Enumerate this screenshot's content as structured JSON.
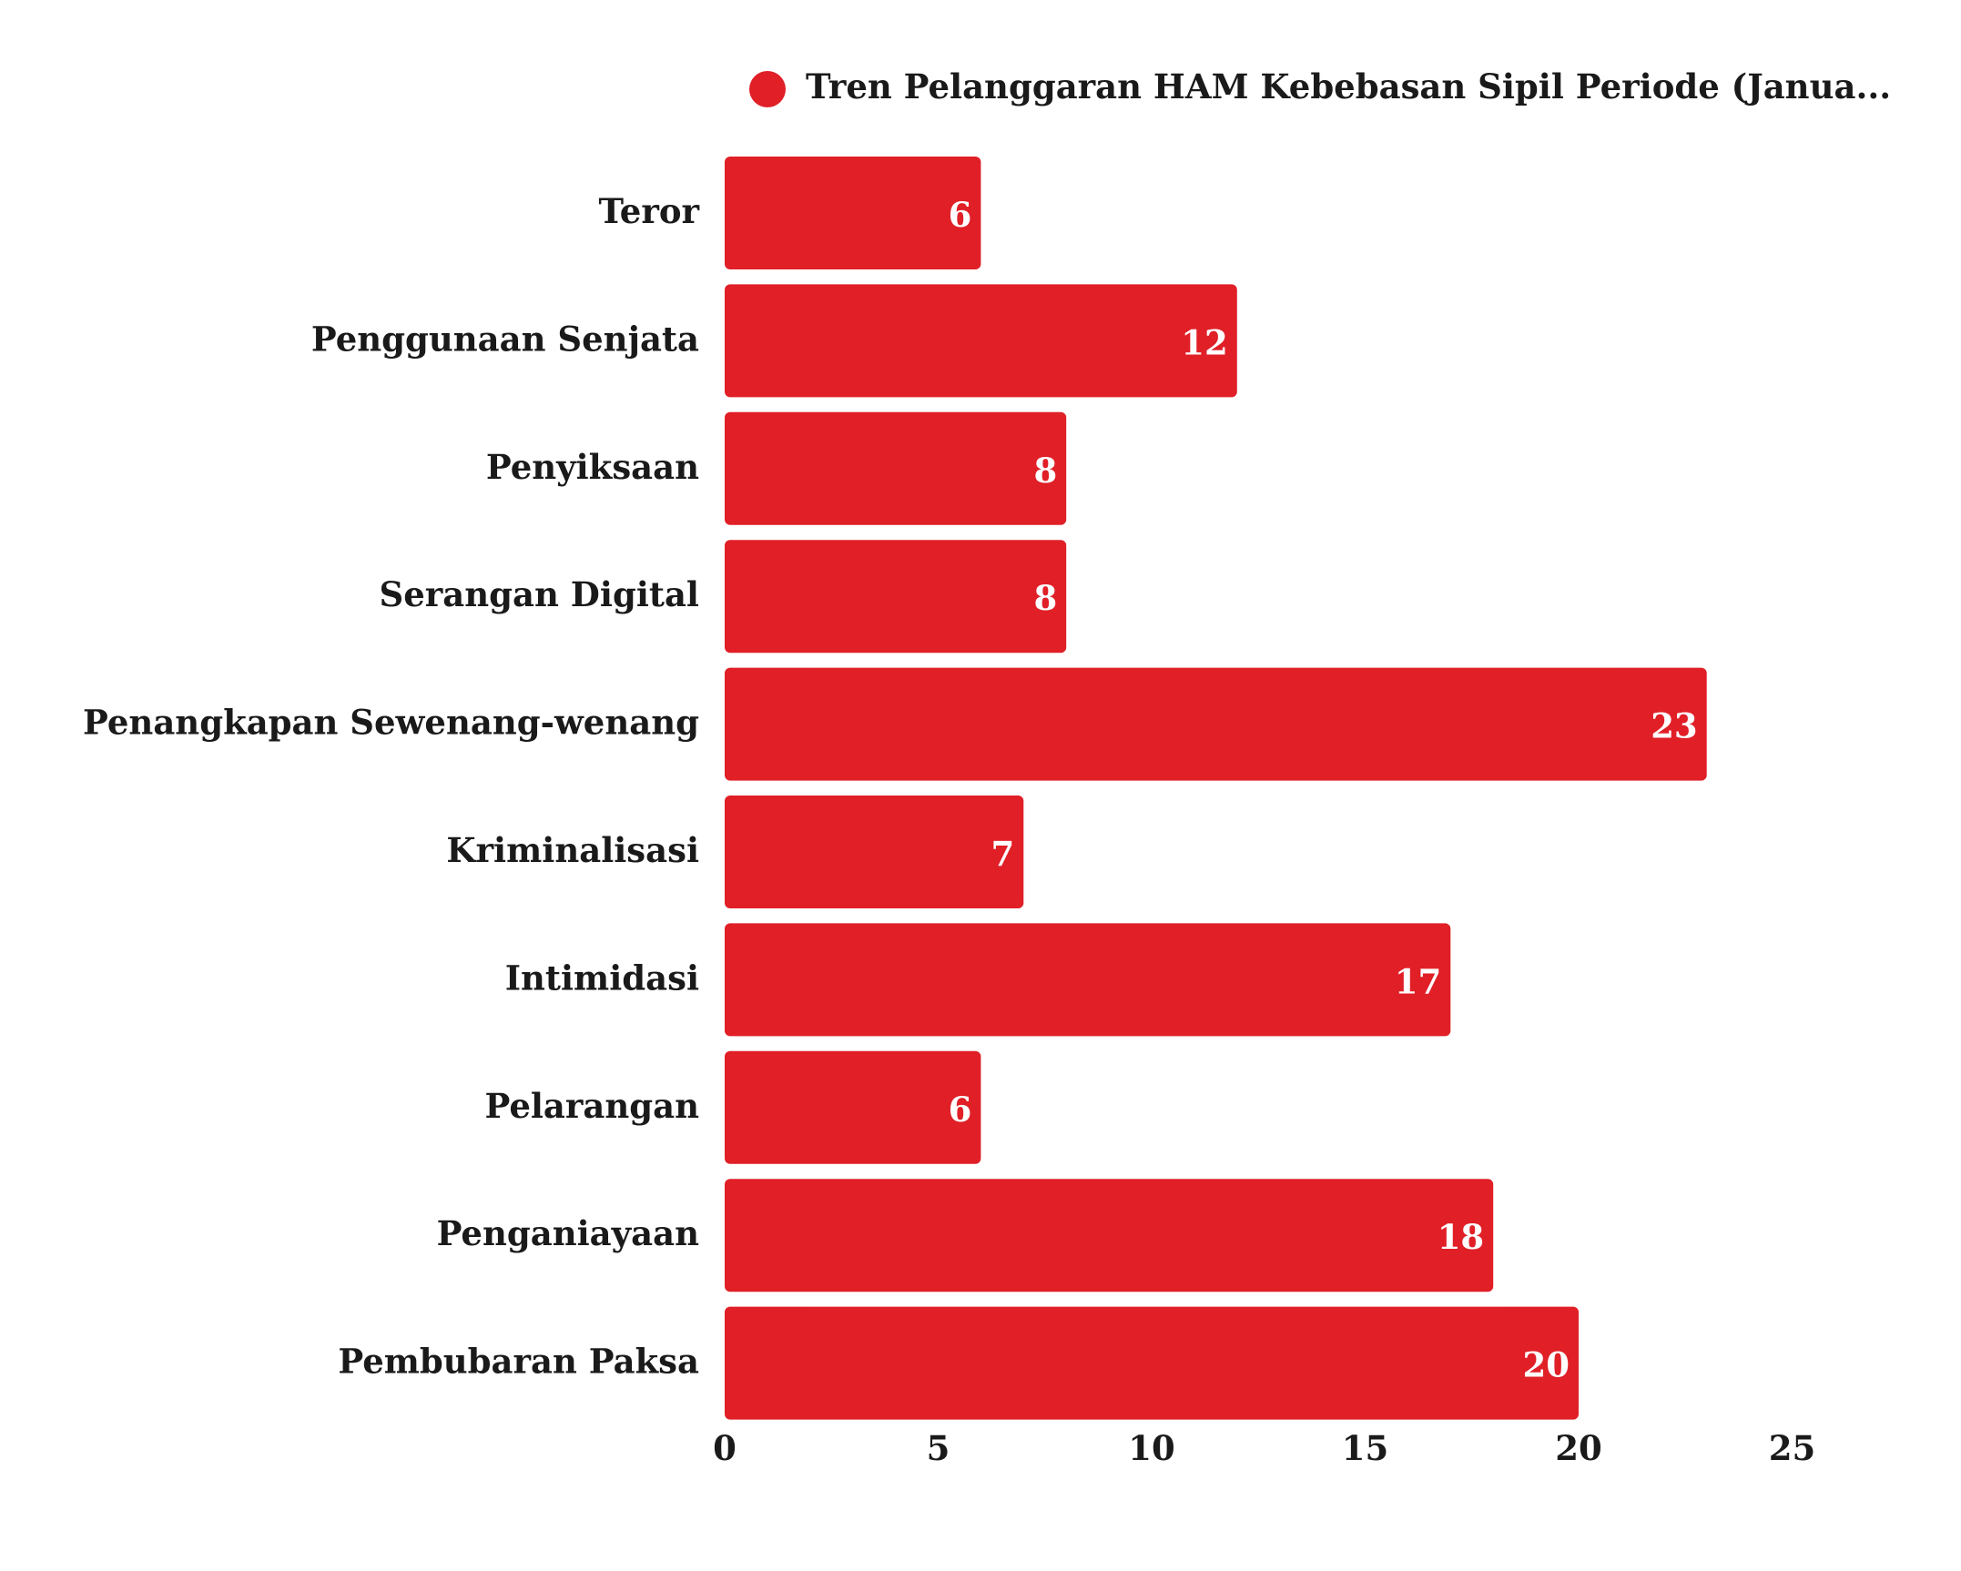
{
  "chart_data": {
    "type": "bar",
    "orientation": "horizontal",
    "categories": [
      "Teror",
      "Penggunaan Senjata",
      "Penyiksaan",
      "Serangan Digital",
      "Penangkapan Sewenang-wenang",
      "Kriminalisasi",
      "Intimidasi",
      "Pelarangan",
      "Penganiayaan",
      "Pembubaran Paksa"
    ],
    "series": [
      {
        "name": "Tren Pelanggaran HAM Kebebasan Sipil Periode (Janua...",
        "values": [
          6,
          12,
          8,
          8,
          23,
          7,
          17,
          6,
          18,
          20
        ],
        "color": "#e01f27"
      }
    ],
    "xlim": [
      0,
      25
    ],
    "xticks": [
      "0",
      "5",
      "10",
      "15",
      "20",
      "25"
    ],
    "grid": false,
    "legend_position": "top",
    "data_labels": true
  }
}
